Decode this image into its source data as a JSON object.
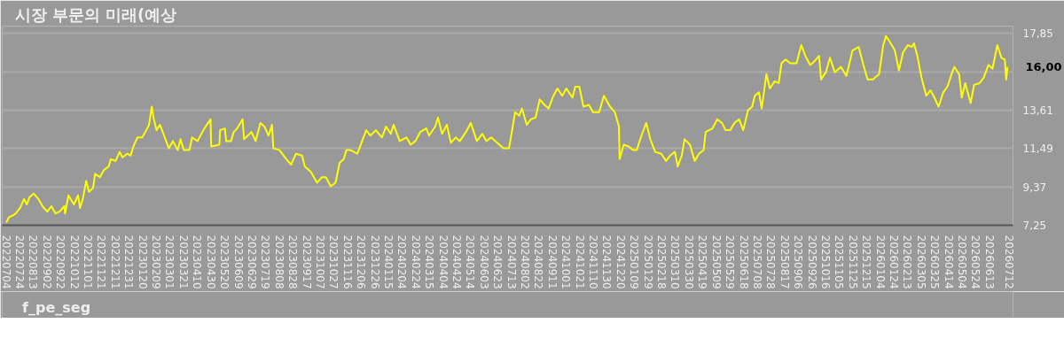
{
  "chart_data": {
    "type": "line",
    "title": "시장 부문의 미래(예상",
    "x": [
      "2022-07-04",
      "2022-07-08",
      "2022-07-14",
      "2022-07-18",
      "2022-07-24",
      "2022-07-30",
      "2022-08-03",
      "2022-08-07",
      "2022-08-13",
      "2022-08-20",
      "2022-08-26",
      "2022-09-02",
      "2022-09-08",
      "2022-09-14",
      "2022-09-20",
      "2022-09-27",
      "2022-09-28",
      "2022-10-03",
      "2022-10-11",
      "2022-10-17",
      "2022-10-20",
      "2022-10-24",
      "2022-10-29",
      "2022-11-02",
      "2022-11-08",
      "2022-11-11",
      "2022-11-18",
      "2022-11-24",
      "2022-12-01",
      "2022-12-04",
      "2022-12-11",
      "2022-12-17",
      "2022-12-21",
      "2022-12-28",
      "2023-01-02",
      "2023-01-06",
      "2023-01-12",
      "2023-01-19",
      "2023-01-25",
      "2023-01-29",
      "2023-02-02",
      "2023-02-05",
      "2023-02-09",
      "2023-02-14",
      "2023-02-20",
      "2023-02-27",
      "2023-03-05",
      "2023-03-12",
      "2023-03-16",
      "2023-03-21",
      "2023-03-29",
      "2023-04-02",
      "2023-04-10",
      "2023-04-20",
      "2023-04-29",
      "2023-04-30",
      "2023-05-12",
      "2023-05-13",
      "2023-05-20",
      "2023-05-22",
      "2023-05-29",
      "2023-06-02",
      "2023-06-07",
      "2023-06-15",
      "2023-06-17",
      "2023-06-28",
      "2023-07-04",
      "2023-07-11",
      "2023-07-17",
      "2023-07-23",
      "2023-07-28",
      "2023-07-30",
      "2023-08-08",
      "2023-08-18",
      "2023-08-25",
      "2023-09-01",
      "2023-09-10",
      "2023-09-14",
      "2023-09-23",
      "2023-10-02",
      "2023-10-09",
      "2023-10-15",
      "2023-10-22",
      "2023-10-29",
      "2023-11-04",
      "2023-11-10",
      "2023-11-14",
      "2023-11-20",
      "2023-11-30",
      "2023-12-06",
      "2023-12-13",
      "2023-12-19",
      "2023-12-27",
      "2024-01-05",
      "2024-01-11",
      "2024-01-18",
      "2024-01-22",
      "2024-01-31",
      "2024-02-10",
      "2024-02-16",
      "2024-02-23",
      "2024-03-01",
      "2024-03-10",
      "2024-03-14",
      "2024-03-23",
      "2024-03-27",
      "2024-04-02",
      "2024-04-09",
      "2024-04-15",
      "2024-04-22",
      "2024-04-28",
      "2024-05-07",
      "2024-05-14",
      "2024-05-23",
      "2024-05-31",
      "2024-06-06",
      "2024-06-13",
      "2024-06-22",
      "2024-07-01",
      "2024-07-09",
      "2024-07-14",
      "2024-07-18",
      "2024-07-24",
      "2024-07-28",
      "2024-08-04",
      "2024-08-10",
      "2024-08-17",
      "2024-08-23",
      "2024-08-30",
      "2024-09-05",
      "2024-09-12",
      "2024-09-18",
      "2024-09-25",
      "2024-10-01",
      "2024-10-10",
      "2024-10-14",
      "2024-10-20",
      "2024-10-26",
      "2024-11-03",
      "2024-11-09",
      "2024-11-18",
      "2024-11-25",
      "2024-12-04",
      "2024-12-11",
      "2024-12-17",
      "2024-12-18",
      "2024-12-24",
      "2024-12-31",
      "2025-01-07",
      "2025-01-12",
      "2025-01-19",
      "2025-01-26",
      "2025-02-01",
      "2025-02-08",
      "2025-02-17",
      "2025-02-24",
      "2025-03-02",
      "2025-03-09",
      "2025-03-13",
      "2025-03-19",
      "2025-03-23",
      "2025-03-31",
      "2025-04-07",
      "2025-04-13",
      "2025-04-20",
      "2025-04-23",
      "2025-05-03",
      "2025-05-10",
      "2025-05-17",
      "2025-05-22",
      "2025-05-29",
      "2025-06-04",
      "2025-06-11",
      "2025-06-17",
      "2025-06-24",
      "2025-06-30",
      "2025-07-04",
      "2025-07-10",
      "2025-07-14",
      "2025-07-21",
      "2025-07-26",
      "2025-08-02",
      "2025-08-08",
      "2025-08-12",
      "2025-08-18",
      "2025-08-25",
      "2025-09-03",
      "2025-09-10",
      "2025-09-16",
      "2025-09-23",
      "2025-09-29",
      "2025-10-06",
      "2025-10-09",
      "2025-10-16",
      "2025-10-22",
      "2025-10-29",
      "2025-11-07",
      "2025-11-15",
      "2025-11-24",
      "2025-12-03",
      "2025-12-10",
      "2025-12-16",
      "2025-12-24",
      "2026-01-02",
      "2026-01-08",
      "2026-01-12",
      "2026-01-19",
      "2026-01-25",
      "2026-01-31",
      "2026-02-06",
      "2026-02-13",
      "2026-02-19",
      "2026-02-22",
      "2026-02-27",
      "2026-03-05",
      "2026-03-12",
      "2026-03-18",
      "2026-03-24",
      "2026-03-30",
      "2026-04-06",
      "2026-04-12",
      "2026-04-19",
      "2026-04-22",
      "2026-04-29",
      "2026-05-03",
      "2026-05-08",
      "2026-05-16",
      "2026-05-21",
      "2026-05-29",
      "2026-06-04",
      "2026-06-11",
      "2026-06-17",
      "2026-06-24",
      "2026-06-30",
      "2026-07-05",
      "2026-07-07",
      "2026-07-09"
    ],
    "series": [
      {
        "name": "f_pe_seg",
        "color": "#ffff00",
        "values": [
          7.4,
          7.7,
          7.8,
          7.9,
          8.2,
          8.7,
          8.4,
          8.8,
          9.0,
          8.7,
          8.3,
          8.0,
          8.3,
          7.9,
          8.0,
          8.3,
          7.9,
          8.9,
          8.4,
          8.9,
          8.2,
          8.7,
          9.7,
          9.1,
          9.3,
          10.1,
          9.9,
          10.3,
          10.5,
          10.9,
          10.8,
          11.3,
          11.0,
          11.2,
          11.1,
          11.6,
          12.1,
          12.1,
          12.5,
          12.8,
          13.8,
          13.1,
          12.5,
          12.8,
          12.2,
          11.5,
          11.9,
          11.4,
          12.0,
          11.4,
          11.4,
          12.1,
          11.9,
          12.6,
          13.1,
          11.6,
          11.7,
          12.5,
          12.6,
          11.9,
          11.9,
          12.4,
          12.6,
          13.1,
          12.0,
          12.4,
          11.9,
          12.9,
          12.7,
          12.2,
          12.8,
          11.5,
          11.4,
          10.9,
          10.6,
          11.2,
          11.1,
          10.5,
          10.2,
          9.6,
          9.9,
          9.9,
          9.4,
          9.6,
          10.7,
          10.9,
          11.4,
          11.4,
          11.2,
          11.8,
          12.5,
          12.2,
          12.5,
          12.1,
          12.7,
          12.3,
          12.8,
          11.9,
          12.1,
          11.7,
          11.9,
          12.4,
          12.6,
          12.2,
          12.7,
          13.2,
          12.3,
          12.8,
          11.8,
          12.1,
          11.9,
          12.4,
          12.9,
          11.9,
          12.3,
          11.9,
          12.1,
          11.8,
          11.5,
          11.5,
          12.6,
          13.5,
          13.3,
          13.7,
          12.8,
          13.1,
          13.2,
          14.2,
          13.9,
          13.7,
          14.4,
          14.8,
          14.4,
          14.8,
          14.3,
          14.9,
          14.9,
          13.8,
          13.9,
          13.5,
          13.5,
          14.4,
          13.8,
          13.5,
          12.7,
          10.9,
          11.7,
          11.6,
          11.4,
          11.4,
          12.2,
          12.9,
          12.0,
          11.3,
          11.2,
          10.8,
          11.1,
          11.3,
          10.5,
          11.1,
          12.0,
          11.7,
          10.8,
          11.2,
          11.4,
          12.4,
          12.6,
          13.1,
          12.9,
          12.5,
          12.5,
          12.9,
          13.1,
          12.5,
          13.6,
          13.8,
          14.4,
          14.6,
          13.7,
          15.6,
          14.8,
          15.2,
          15.1,
          16.2,
          16.4,
          16.2,
          16.2,
          17.2,
          16.6,
          16.1,
          16.3,
          16.6,
          15.3,
          15.7,
          16.5,
          15.7,
          16.0,
          15.5,
          16.9,
          17.1,
          16.1,
          15.3,
          15.3,
          15.6,
          17.2,
          17.7,
          17.3,
          16.9,
          15.8,
          16.8,
          17.2,
          17.1,
          17.3,
          16.6,
          15.4,
          14.4,
          14.7,
          14.3,
          13.8,
          14.6,
          14.9,
          15.7,
          16.0,
          15.6,
          14.3,
          15.1,
          14.0,
          15.0,
          15.1,
          15.4,
          16.1,
          15.9,
          17.2,
          16.5,
          16.4,
          15.3,
          16.0
        ]
      }
    ],
    "ylim": [
      7.25,
      18.25
    ],
    "yticks": [
      {
        "value": 7.25,
        "label": "7,25"
      },
      {
        "value": 9.37,
        "label": "9,37"
      },
      {
        "value": 11.49,
        "label": "11,49"
      },
      {
        "value": 13.61,
        "label": "13,61"
      },
      {
        "value": 15.73,
        "label": null
      },
      {
        "value": 17.85,
        "label": "17,85"
      }
    ],
    "xlim": [
      "2022-06-28",
      "2026-07-17"
    ],
    "xticks": [
      {
        "value": "2022-07-04",
        "label": "20220704"
      },
      {
        "value": "2022-07-24",
        "label": "20220724"
      },
      {
        "value": "2022-08-13",
        "label": "20220813"
      },
      {
        "value": "2022-09-02",
        "label": "20220902"
      },
      {
        "value": "2022-09-22",
        "label": "20220922"
      },
      {
        "value": "2022-10-12",
        "label": "20221012"
      },
      {
        "value": "2022-11-01",
        "label": "20221101"
      },
      {
        "value": "2022-11-21",
        "label": "20221121"
      },
      {
        "value": "2022-12-11",
        "label": "20221211"
      },
      {
        "value": "2022-12-31",
        "label": "20221231"
      },
      {
        "value": "2023-01-20",
        "label": "20230120"
      },
      {
        "value": "2023-02-09",
        "label": "20230209"
      },
      {
        "value": "2023-03-01",
        "label": "20230301"
      },
      {
        "value": "2023-03-21",
        "label": "20230321"
      },
      {
        "value": "2023-04-10",
        "label": "20230410"
      },
      {
        "value": "2023-04-30",
        "label": "20230430"
      },
      {
        "value": "2023-05-20",
        "label": "20230520"
      },
      {
        "value": "2023-06-09",
        "label": "20230609"
      },
      {
        "value": "2023-06-29",
        "label": "20230629"
      },
      {
        "value": "2023-07-19",
        "label": "20230719"
      },
      {
        "value": "2023-08-08",
        "label": "20230808"
      },
      {
        "value": "2023-08-28",
        "label": "20230828"
      },
      {
        "value": "2023-09-17",
        "label": "20230917"
      },
      {
        "value": "2023-10-07",
        "label": "20231007"
      },
      {
        "value": "2023-10-27",
        "label": "20231027"
      },
      {
        "value": "2023-11-16",
        "label": "20231116"
      },
      {
        "value": "2023-12-06",
        "label": "20231206"
      },
      {
        "value": "2023-12-26",
        "label": "20231226"
      },
      {
        "value": "2024-01-15",
        "label": "20240115"
      },
      {
        "value": "2024-02-04",
        "label": "20240204"
      },
      {
        "value": "2024-02-24",
        "label": "20240224"
      },
      {
        "value": "2024-03-15",
        "label": "20240315"
      },
      {
        "value": "2024-04-04",
        "label": "20240404"
      },
      {
        "value": "2024-04-24",
        "label": "20240424"
      },
      {
        "value": "2024-05-14",
        "label": "20240514"
      },
      {
        "value": "2024-06-03",
        "label": "20240603"
      },
      {
        "value": "2024-06-23",
        "label": "20240623"
      },
      {
        "value": "2024-07-13",
        "label": "20240713"
      },
      {
        "value": "2024-08-02",
        "label": "20240802"
      },
      {
        "value": "2024-08-22",
        "label": "20240822"
      },
      {
        "value": "2024-09-11",
        "label": "20240911"
      },
      {
        "value": "2024-10-01",
        "label": "20241001"
      },
      {
        "value": "2024-10-21",
        "label": "20241021"
      },
      {
        "value": "2024-11-10",
        "label": "20241110"
      },
      {
        "value": "2024-11-30",
        "label": "20241130"
      },
      {
        "value": "2024-12-20",
        "label": "20241220"
      },
      {
        "value": "2025-01-09",
        "label": "20250109"
      },
      {
        "value": "2025-01-29",
        "label": "20250129"
      },
      {
        "value": "2025-02-18",
        "label": "20250218"
      },
      {
        "value": "2025-03-10",
        "label": "20250310"
      },
      {
        "value": "2025-03-30",
        "label": "20250330"
      },
      {
        "value": "2025-04-19",
        "label": "20250419"
      },
      {
        "value": "2025-05-09",
        "label": "20250509"
      },
      {
        "value": "2025-05-29",
        "label": "20250529"
      },
      {
        "value": "2025-06-18",
        "label": "20250618"
      },
      {
        "value": "2025-07-08",
        "label": "20250708"
      },
      {
        "value": "2025-07-28",
        "label": "20250728"
      },
      {
        "value": "2025-08-17",
        "label": "20250817"
      },
      {
        "value": "2025-09-06",
        "label": "20250906"
      },
      {
        "value": "2025-09-26",
        "label": "20250926"
      },
      {
        "value": "2025-10-16",
        "label": "20251016"
      },
      {
        "value": "2025-11-05",
        "label": "20251105"
      },
      {
        "value": "2025-11-25",
        "label": "20251125"
      },
      {
        "value": "2025-12-15",
        "label": "20251215"
      },
      {
        "value": "2026-01-04",
        "label": "20260104"
      },
      {
        "value": "2026-01-24",
        "label": "20260124"
      },
      {
        "value": "2026-02-13",
        "label": "20260213"
      },
      {
        "value": "2026-03-05",
        "label": "20260305"
      },
      {
        "value": "2026-03-25",
        "label": "20260325"
      },
      {
        "value": "2026-04-14",
        "label": "20260414"
      },
      {
        "value": "2026-05-04",
        "label": "20260504"
      },
      {
        "value": "2026-05-24",
        "label": "20260524"
      },
      {
        "value": "2026-06-13",
        "label": "20260613"
      },
      {
        "value": "2026-07-12",
        "label": "20260712"
      }
    ],
    "annotations": [
      "16,00"
    ],
    "grid": "y",
    "legend": "bottom left",
    "marker": "none",
    "line_style": "solid"
  }
}
